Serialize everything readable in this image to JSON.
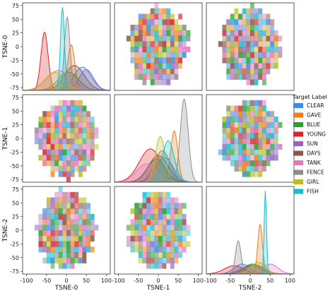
{
  "chart_data": {
    "type": "pairplot",
    "variables": [
      "TSNE-0",
      "TSNE-1",
      "TSNE-2"
    ],
    "diag_kind": "kde",
    "offdiag_kind": "hist2d",
    "xlim": [
      -110,
      110
    ],
    "ylim": [
      -80,
      80
    ],
    "xticks": [
      -100,
      -50,
      0,
      50,
      100
    ],
    "yticks": [
      -75,
      -50,
      -25,
      0,
      25,
      50,
      75
    ],
    "legend": {
      "title": "Target Label",
      "placement": "right",
      "entries": [
        {
          "name": "CLEAR",
          "color": "#3b8fe0"
        },
        {
          "name": "GAVE",
          "color": "#f07d1a"
        },
        {
          "name": "BLUE",
          "color": "#2ca02c"
        },
        {
          "name": "YOUNG",
          "color": "#d62728"
        },
        {
          "name": "SUN",
          "color": "#9467bd"
        },
        {
          "name": "DAYS",
          "color": "#8c564b"
        },
        {
          "name": "TANK",
          "color": "#e377c2"
        },
        {
          "name": "FENCE",
          "color": "#8c8c8c"
        },
        {
          "name": "GIRL",
          "color": "#bcbd22"
        },
        {
          "name": "FISH",
          "color": "#17becf"
        }
      ]
    },
    "diagonal_kde": [
      {
        "variable": "TSNE-0",
        "peaks": [
          {
            "label": "CLEAR",
            "mean": 40,
            "sd": 22,
            "height": 0.28
          },
          {
            "label": "GAVE",
            "mean": 12,
            "sd": 9,
            "height": 0.55
          },
          {
            "label": "BLUE",
            "mean": 5,
            "sd": 25,
            "height": 0.22
          },
          {
            "label": "YOUNG",
            "mean": -55,
            "sd": 9,
            "height": 0.7
          },
          {
            "label": "SUN",
            "mean": 50,
            "sd": 18,
            "height": 0.25
          },
          {
            "label": "DAYS",
            "mean": 20,
            "sd": 25,
            "height": 0.3
          },
          {
            "label": "TANK",
            "mean": -20,
            "sd": 28,
            "height": 0.24
          },
          {
            "label": "FENCE",
            "mean": 2,
            "sd": 7,
            "height": 0.88
          },
          {
            "label": "GIRL",
            "mean": -30,
            "sd": 25,
            "height": 0.22
          },
          {
            "label": "FISH",
            "mean": -10,
            "sd": 5,
            "height": 1.0
          }
        ]
      },
      {
        "variable": "TSNE-1",
        "peaks": [
          {
            "label": "CLEAR",
            "mean": 15,
            "sd": 22,
            "height": 0.3
          },
          {
            "label": "GAVE",
            "mean": 40,
            "sd": 9,
            "height": 0.62
          },
          {
            "label": "BLUE",
            "mean": -5,
            "sd": 22,
            "height": 0.28
          },
          {
            "label": "YOUNG",
            "mean": -20,
            "sd": 28,
            "height": 0.4
          },
          {
            "label": "SUN",
            "mean": 10,
            "sd": 20,
            "height": 0.38
          },
          {
            "label": "DAYS",
            "mean": 0,
            "sd": 25,
            "height": 0.32
          },
          {
            "label": "TANK",
            "mean": -30,
            "sd": 25,
            "height": 0.22
          },
          {
            "label": "FENCE",
            "mean": 65,
            "sd": 10,
            "height": 1.0
          },
          {
            "label": "GIRL",
            "mean": 5,
            "sd": 12,
            "height": 0.55
          },
          {
            "label": "FISH",
            "mean": 25,
            "sd": 15,
            "height": 0.5
          }
        ]
      },
      {
        "variable": "TSNE-2",
        "peaks": [
          {
            "label": "CLEAR",
            "mean": -20,
            "sd": 20,
            "height": 0.12
          },
          {
            "label": "GAVE",
            "mean": 25,
            "sd": 6,
            "height": 0.6
          },
          {
            "label": "BLUE",
            "mean": 5,
            "sd": 22,
            "height": 0.12
          },
          {
            "label": "YOUNG",
            "mean": -40,
            "sd": 25,
            "height": 0.1
          },
          {
            "label": "SUN",
            "mean": 0,
            "sd": 25,
            "height": 0.1
          },
          {
            "label": "DAYS",
            "mean": 10,
            "sd": 25,
            "height": 0.11
          },
          {
            "label": "TANK",
            "mean": 50,
            "sd": 20,
            "height": 0.12
          },
          {
            "label": "FENCE",
            "mean": -30,
            "sd": 7,
            "height": 0.4
          },
          {
            "label": "GIRL",
            "mean": 20,
            "sd": 18,
            "height": 0.14
          },
          {
            "label": "FISH",
            "mean": 38,
            "sd": 3,
            "height": 1.0
          }
        ]
      }
    ],
    "offdiag_blob": {
      "center_x": 0,
      "center_y": 0,
      "radius_x": 75,
      "radius_y": 72
    }
  }
}
